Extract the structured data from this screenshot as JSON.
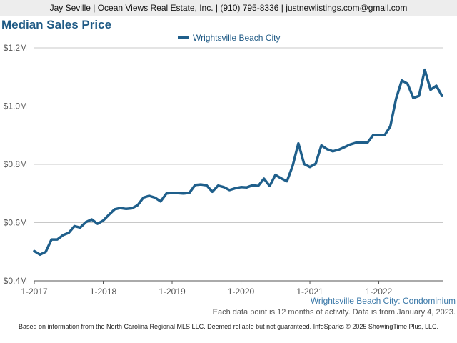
{
  "header": {
    "agent_line": "Jay Seville | Ocean Views Real Estate, Inc. | (910) 795-8336 | justnewlistings.com@gmail.com"
  },
  "chart_data": {
    "type": "line",
    "title": "Median Sales Price",
    "ylim": [
      400000,
      1200000
    ],
    "y_ticks": [
      {
        "value": 400000,
        "label": "$0.4M"
      },
      {
        "value": 600000,
        "label": "$0.6M"
      },
      {
        "value": 800000,
        "label": "$0.8M"
      },
      {
        "value": 1000000,
        "label": "$1.0M"
      },
      {
        "value": 1200000,
        "label": "$1.2M"
      }
    ],
    "x_ticks": [
      "1-2017",
      "1-2018",
      "1-2019",
      "1-2020",
      "1-2021",
      "1-2022"
    ],
    "grid": true,
    "legend_position": "top-center",
    "series": [
      {
        "name": "Wrightsville Beach City",
        "color": "#1f5f8b",
        "x": [
          "1-2017",
          "2-2017",
          "3-2017",
          "4-2017",
          "5-2017",
          "6-2017",
          "7-2017",
          "8-2017",
          "9-2017",
          "10-2017",
          "11-2017",
          "12-2017",
          "1-2018",
          "2-2018",
          "3-2018",
          "4-2018",
          "5-2018",
          "6-2018",
          "7-2018",
          "8-2018",
          "9-2018",
          "10-2018",
          "11-2018",
          "12-2018",
          "1-2019",
          "2-2019",
          "3-2019",
          "4-2019",
          "5-2019",
          "6-2019",
          "7-2019",
          "8-2019",
          "9-2019",
          "10-2019",
          "11-2019",
          "12-2019",
          "1-2020",
          "2-2020",
          "3-2020",
          "4-2020",
          "5-2020",
          "6-2020",
          "7-2020",
          "8-2020",
          "9-2020",
          "10-2020",
          "11-2020",
          "12-2020",
          "1-2021",
          "2-2021",
          "3-2021",
          "4-2021",
          "5-2021",
          "6-2021",
          "7-2021",
          "8-2021",
          "9-2021",
          "10-2021",
          "11-2021",
          "12-2021",
          "1-2022",
          "2-2022",
          "3-2022",
          "4-2022",
          "5-2022",
          "6-2022",
          "7-2022",
          "8-2022",
          "9-2022",
          "10-2022",
          "11-2022",
          "12-2022"
        ],
        "values": [
          502000,
          490000,
          500000,
          542000,
          542000,
          557000,
          565000,
          588000,
          583000,
          602000,
          611000,
          596000,
          607000,
          627000,
          646000,
          650000,
          647000,
          649000,
          660000,
          686000,
          692000,
          686000,
          673000,
          700000,
          702000,
          701000,
          700000,
          702000,
          729000,
          731000,
          728000,
          706000,
          727000,
          722000,
          712000,
          718000,
          722000,
          721000,
          728000,
          726000,
          751000,
          726000,
          764000,
          752000,
          742000,
          795000,
          872000,
          801000,
          791000,
          802000,
          865000,
          852000,
          845000,
          850000,
          859000,
          868000,
          874000,
          875000,
          874000,
          900000,
          900000,
          900000,
          930000,
          1025000,
          1088000,
          1077000,
          1028000,
          1035000,
          1125000,
          1056000,
          1070000,
          1035000
        ]
      }
    ]
  },
  "notes": {
    "series_label": "Wrightsville Beach City: Condominium",
    "data_note": "Each data point is 12 months of activity. Data is from January 4, 2023."
  },
  "footer": {
    "disclaimer": "Based on information from the North Carolina Regional MLS LLC. Deemed reliable but not guaranteed. InfoSparks © 2025 ShowingTime Plus, LLC."
  }
}
